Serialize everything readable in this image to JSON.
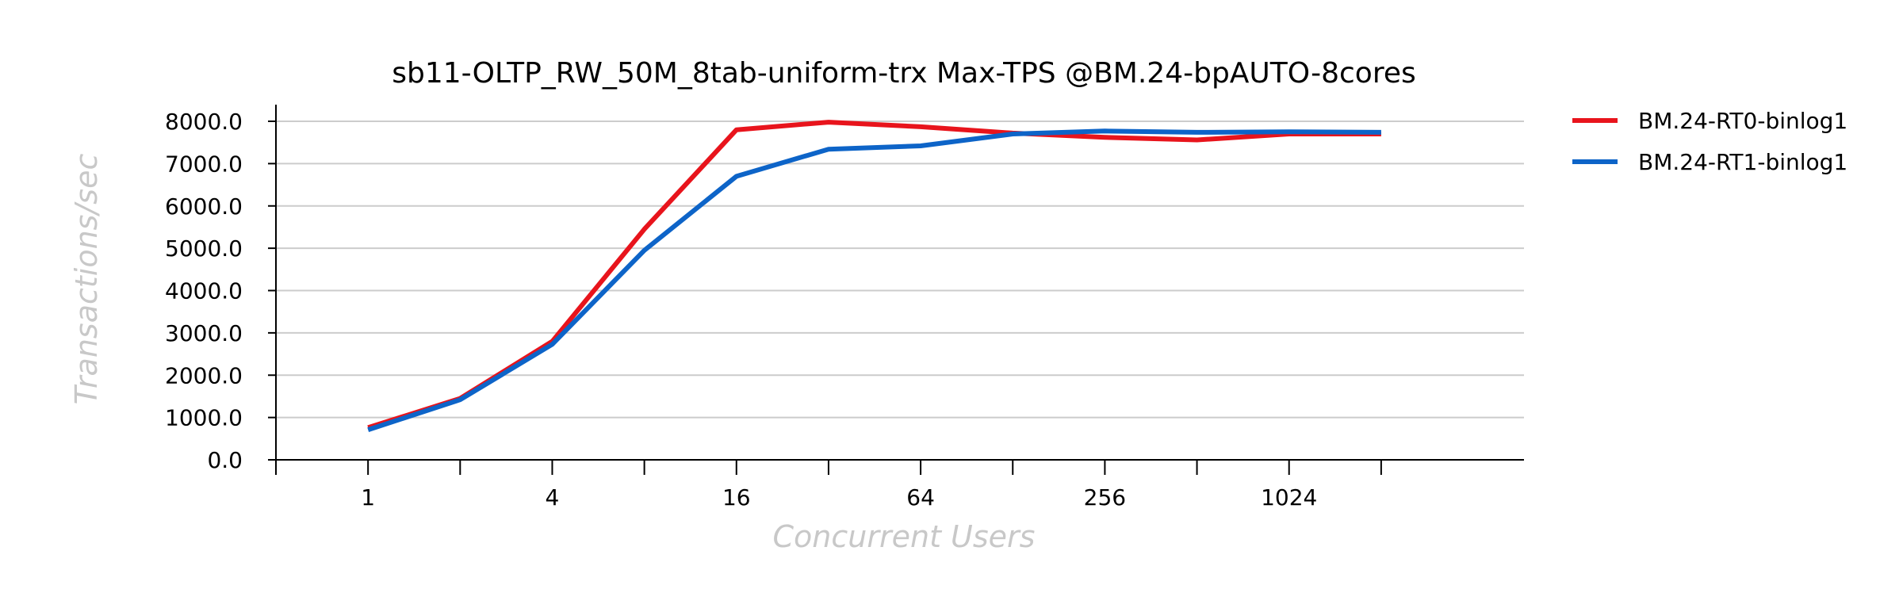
{
  "chart_data": {
    "type": "line",
    "title": "sb11-OLTP_RW_50M_8tab-uniform-trx Max-TPS @BM.24-bpAUTO-8cores",
    "xlabel": "Concurrent Users",
    "ylabel": "Transactions/sec",
    "x_scale": "log2",
    "x": [
      1,
      2,
      4,
      8,
      16,
      32,
      64,
      128,
      256,
      512,
      1024,
      2048
    ],
    "x_tick_labels": [
      {
        "x": 1,
        "label": "1"
      },
      {
        "x": 4,
        "label": "4"
      },
      {
        "x": 16,
        "label": "16"
      },
      {
        "x": 64,
        "label": "64"
      },
      {
        "x": 256,
        "label": "256"
      },
      {
        "x": 1024,
        "label": "1024"
      }
    ],
    "x_tick_marks": [
      0.5,
      1,
      2,
      4,
      8,
      16,
      32,
      64,
      128,
      256,
      512,
      1024,
      2048
    ],
    "xlim": [
      0.5,
      6000
    ],
    "ylim": [
      0,
      8000
    ],
    "y_ticks": [
      {
        "value": 0,
        "label": "0.0"
      },
      {
        "value": 1000,
        "label": "1000.0"
      },
      {
        "value": 2000,
        "label": "2000.0"
      },
      {
        "value": 3000,
        "label": "3000.0"
      },
      {
        "value": 4000,
        "label": "4000.0"
      },
      {
        "value": 5000,
        "label": "5000.0"
      },
      {
        "value": 6000,
        "label": "6000.0"
      },
      {
        "value": 7000,
        "label": "7000.0"
      },
      {
        "value": 8000,
        "label": "8000.0"
      }
    ],
    "grid": true,
    "legend": "right",
    "series": [
      {
        "name": "BM.24-RT0-binlog1",
        "color": "#e8141c",
        "values": [
          760,
          1450,
          2800,
          5450,
          7800,
          7980,
          7870,
          7720,
          7620,
          7560,
          7700,
          7700
        ]
      },
      {
        "name": "BM.24-RT1-binlog1",
        "color": "#0d64c8",
        "values": [
          710,
          1420,
          2730,
          4950,
          6700,
          7340,
          7420,
          7700,
          7770,
          7740,
          7750,
          7740
        ]
      }
    ]
  }
}
